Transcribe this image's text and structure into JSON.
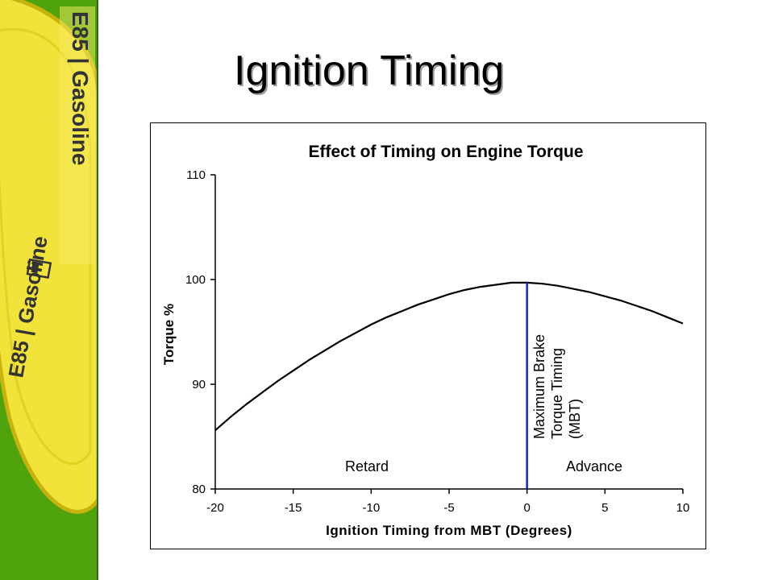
{
  "slide": {
    "title": "Ignition Timing",
    "banner_text_1": "E85 | Gasoline",
    "banner_text_2": "E85 | Gasoline",
    "banner_color": "#4fa30c",
    "badge_color": "#f2e33a"
  },
  "chart_data": {
    "type": "line",
    "title": "Effect of Timing on Engine Torque",
    "xlabel": "Ignition Timing from MBT (Degrees)",
    "ylabel": "Torque %",
    "xlim": [
      -20,
      10
    ],
    "ylim": [
      80,
      110
    ],
    "xticks": [
      "-20",
      "-15",
      "-10",
      "-5",
      "0",
      "5",
      "10"
    ],
    "yticks": [
      "80",
      "90",
      "100",
      "110"
    ],
    "grid": false,
    "series": [
      {
        "color": "#000000",
        "x": [
          -20,
          -19,
          -18,
          -17,
          -16,
          -15,
          -14,
          -13,
          -12,
          -11,
          -10,
          -9,
          -8,
          -7,
          -6,
          -5,
          -4,
          -3,
          -2,
          -1,
          0,
          1,
          2,
          3,
          4,
          5,
          6,
          7,
          8,
          9,
          10
        ],
        "y": [
          85.6,
          86.9,
          88.1,
          89.2,
          90.3,
          91.3,
          92.3,
          93.2,
          94.1,
          94.9,
          95.7,
          96.4,
          97.0,
          97.6,
          98.1,
          98.6,
          99.0,
          99.3,
          99.5,
          99.7,
          99.7,
          99.6,
          99.4,
          99.1,
          98.8,
          98.4,
          98.0,
          97.5,
          97.0,
          96.4,
          95.8
        ]
      }
    ],
    "mbt_line": {
      "x": 0,
      "color": "#1a27c8"
    },
    "annotations": {
      "retard": "Retard",
      "advance": "Advance",
      "mbt_line1": "Maximum Brake",
      "mbt_line2": "Torque Timing",
      "mbt_line3": "(MBT)"
    }
  }
}
